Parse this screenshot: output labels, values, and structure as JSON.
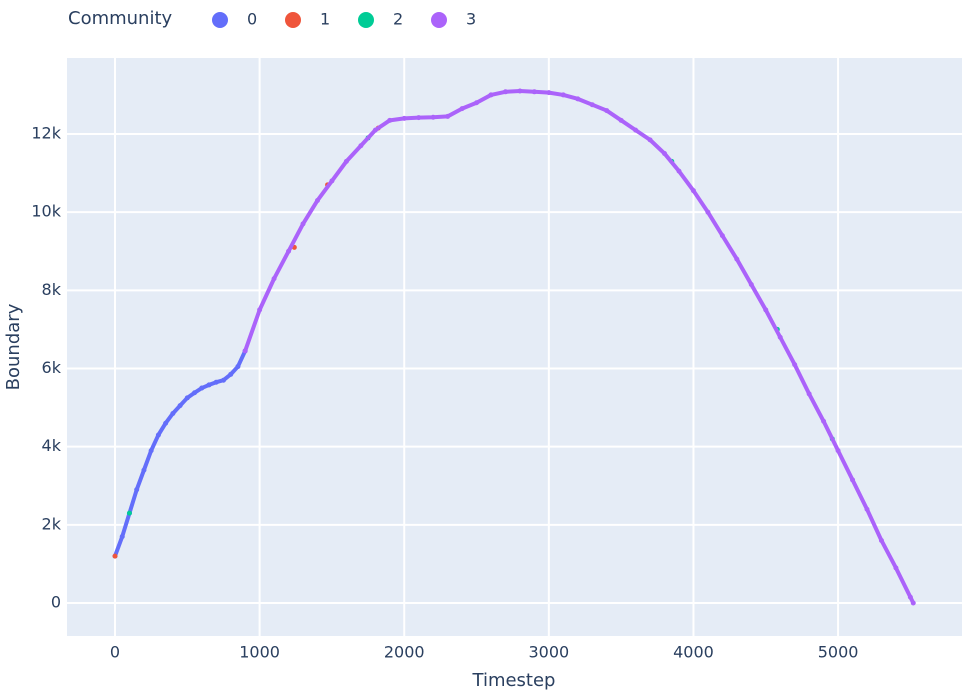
{
  "chart_data": {
    "type": "scatter",
    "xlabel": "Timestep",
    "ylabel": "Boundary",
    "legend_title": "Community",
    "legend_position": "top",
    "xlim": [
      -332,
      5857
    ],
    "ylim": [
      -844,
      13945
    ],
    "xticks": [
      0,
      1000,
      2000,
      3000,
      4000,
      5000
    ],
    "yticks": [
      0,
      {
        "value": 2000,
        "label": "2k"
      },
      {
        "value": 4000,
        "label": "4k"
      },
      {
        "value": 6000,
        "label": "6k"
      },
      {
        "value": 8000,
        "label": "8k"
      },
      {
        "value": 10000,
        "label": "10k"
      },
      {
        "value": 12000,
        "label": "12k"
      }
    ],
    "grid": true,
    "series": [
      {
        "name": "0",
        "color": "#636efa",
        "x": [
          0,
          50,
          100,
          150,
          200,
          250,
          300,
          350,
          400,
          450,
          500,
          550,
          600,
          650,
          700,
          750,
          800,
          850,
          900
        ],
        "values": [
          1200,
          1700,
          2300,
          2900,
          3400,
          3900,
          4300,
          4600,
          4850,
          5050,
          5250,
          5380,
          5500,
          5580,
          5650,
          5700,
          5850,
          6050,
          6450
        ]
      },
      {
        "name": "1",
        "color": "#EF553B",
        "x": [
          0,
          1240,
          1470,
          1820
        ],
        "values": [
          1200,
          9100,
          10700,
          12150
        ]
      },
      {
        "name": "2",
        "color": "#00cc96",
        "x": [
          100,
          1750,
          3850,
          4580,
          4960
        ],
        "values": [
          2300,
          11900,
          11300,
          7000,
          4200
        ]
      },
      {
        "name": "3",
        "color": "#ab63fa",
        "x": [
          900,
          1000,
          1100,
          1200,
          1300,
          1400,
          1500,
          1600,
          1700,
          1800,
          1900,
          2000,
          2100,
          2200,
          2300,
          2400,
          2500,
          2600,
          2700,
          2800,
          2900,
          3000,
          3100,
          3200,
          3300,
          3400,
          3500,
          3600,
          3700,
          3800,
          3900,
          4000,
          4100,
          4200,
          4300,
          4400,
          4500,
          4600,
          4700,
          4800,
          4900,
          5000,
          5100,
          5200,
          5300,
          5400,
          5500,
          5520
        ],
        "values": [
          6450,
          7500,
          8300,
          9000,
          9700,
          10300,
          10800,
          11300,
          11700,
          12100,
          12350,
          12400,
          12420,
          12430,
          12450,
          12650,
          12800,
          13000,
          13080,
          13100,
          13080,
          13060,
          13000,
          12900,
          12750,
          12600,
          12350,
          12100,
          11850,
          11500,
          11050,
          10550,
          10000,
          9400,
          8800,
          8150,
          7500,
          6800,
          6100,
          5350,
          4650,
          3900,
          3150,
          2400,
          1600,
          900,
          150,
          0
        ]
      }
    ]
  }
}
